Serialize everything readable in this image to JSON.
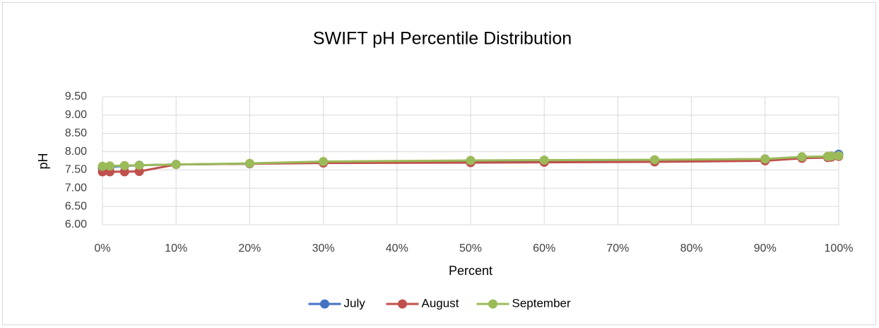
{
  "chart_data": {
    "type": "line",
    "title": "SWIFT pH Percentile Distribution",
    "x_label": "Percent",
    "y_label": "pH",
    "x": [
      0,
      1,
      3,
      5,
      10,
      20,
      30,
      50,
      60,
      75,
      90,
      95,
      98.5,
      99,
      100
    ],
    "series": [
      {
        "name": "July",
        "color": "#4472c4",
        "values": [
          7.55,
          7.58,
          7.61,
          7.63,
          7.65,
          7.67,
          7.72,
          7.75,
          7.76,
          7.77,
          7.8,
          7.85,
          7.87,
          7.88,
          7.93
        ]
      },
      {
        "name": "August",
        "color": "#c0504d",
        "values": [
          7.45,
          7.45,
          7.45,
          7.46,
          7.65,
          7.67,
          7.69,
          7.7,
          7.71,
          7.72,
          7.75,
          7.82,
          7.84,
          7.85,
          7.87
        ]
      },
      {
        "name": "September",
        "color": "#9bbb59",
        "values": [
          7.6,
          7.61,
          7.62,
          7.63,
          7.65,
          7.68,
          7.73,
          7.76,
          7.77,
          7.78,
          7.8,
          7.86,
          7.87,
          7.88,
          7.89
        ]
      }
    ],
    "xlim": [
      0,
      100
    ],
    "xticks": [
      {
        "value": 0,
        "label": "0%"
      },
      {
        "value": 10,
        "label": "10%"
      },
      {
        "value": 20,
        "label": "20%"
      },
      {
        "value": 30,
        "label": "30%"
      },
      {
        "value": 40,
        "label": "40%"
      },
      {
        "value": 50,
        "label": "50%"
      },
      {
        "value": 60,
        "label": "60%"
      },
      {
        "value": 70,
        "label": "70%"
      },
      {
        "value": 80,
        "label": "80%"
      },
      {
        "value": 90,
        "label": "90%"
      },
      {
        "value": 100,
        "label": "100%"
      }
    ],
    "ylim": [
      6,
      9.5
    ],
    "yticks": [
      {
        "value": 6,
        "label": "6.00"
      },
      {
        "value": 6.5,
        "label": "6.50"
      },
      {
        "value": 7,
        "label": "7.00"
      },
      {
        "value": 7.5,
        "label": "7.50"
      },
      {
        "value": 8,
        "label": "8.00"
      },
      {
        "value": 8.5,
        "label": "8.50"
      },
      {
        "value": 9,
        "label": "9.00"
      },
      {
        "value": 9.5,
        "label": "9.50"
      }
    ],
    "grid": true,
    "legend": "bottom"
  }
}
